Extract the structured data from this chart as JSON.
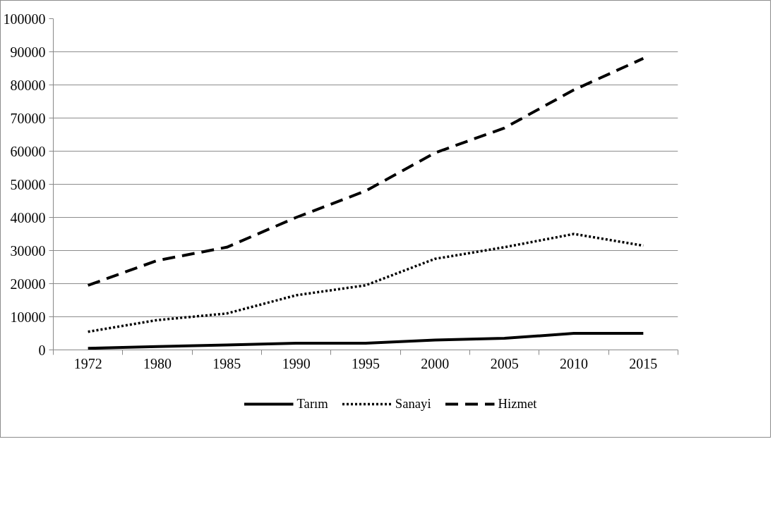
{
  "chart_data": {
    "type": "line",
    "categories": [
      "1972",
      "1980",
      "1985",
      "1990",
      "1995",
      "2000",
      "2005",
      "2010",
      "2015"
    ],
    "ylim": [
      0,
      100000
    ],
    "yticks": [
      0,
      10000,
      20000,
      30000,
      40000,
      50000,
      60000,
      70000,
      80000,
      90000,
      100000
    ],
    "grid": "y",
    "legend": "bottom",
    "marker": "none",
    "series": [
      {
        "name": "Tarım",
        "color": "#000000",
        "line_style": "solid",
        "values": [
          500,
          1000,
          1500,
          2000,
          2000,
          3000,
          3500,
          5000,
          5000
        ]
      },
      {
        "name": "Sanayi",
        "color": "#000000",
        "line_style": "dotted",
        "values": [
          5500,
          9000,
          11000,
          16500,
          19500,
          27500,
          31000,
          35000,
          31500
        ]
      },
      {
        "name": "Hizmet",
        "color": "#000000",
        "line_style": "dashed",
        "values": [
          19500,
          27000,
          31000,
          40000,
          48000,
          59500,
          67000,
          78500,
          88000
        ]
      }
    ]
  }
}
